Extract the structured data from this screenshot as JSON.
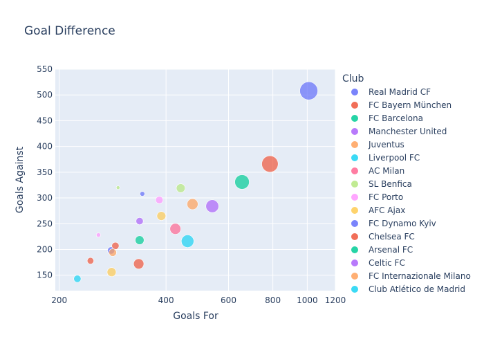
{
  "chart_data": {
    "type": "scatter",
    "title": "Goal Difference",
    "xlabel": "Goals For",
    "ylabel": "Goals Against",
    "x_scale": "log",
    "xlim": [
      195,
      1200
    ],
    "ylim": [
      120,
      550
    ],
    "x_ticks": [
      {
        "value": 200,
        "label": "200"
      },
      {
        "value": 400,
        "label": "400"
      },
      {
        "value": 600,
        "label": "600"
      },
      {
        "value": 800,
        "label": "800"
      },
      {
        "value": 1000,
        "label": "1000"
      },
      {
        "value": 1200,
        "label": "1200"
      }
    ],
    "y_ticks": [
      {
        "value": 150,
        "label": "150"
      },
      {
        "value": 200,
        "label": "200"
      },
      {
        "value": 250,
        "label": "250"
      },
      {
        "value": 300,
        "label": "300"
      },
      {
        "value": 350,
        "label": "350"
      },
      {
        "value": 400,
        "label": "400"
      },
      {
        "value": 450,
        "label": "450"
      },
      {
        "value": 500,
        "label": "500"
      },
      {
        "value": 550,
        "label": "550"
      }
    ],
    "legend_title": "Club",
    "legend_position": "right",
    "series": [
      {
        "name": "Real Madrid CF",
        "color": "#636efa",
        "points": [
          {
            "x": 1010,
            "y": 508,
            "size": 502
          }
        ]
      },
      {
        "name": "FC Bayern München",
        "color": "#EF553B",
        "points": [
          {
            "x": 785,
            "y": 366,
            "size": 419
          }
        ]
      },
      {
        "name": "FC Barcelona",
        "color": "#00cc96",
        "points": [
          {
            "x": 655,
            "y": 331,
            "size": 324
          }
        ]
      },
      {
        "name": "Manchester United",
        "color": "#ab63fa",
        "points": [
          {
            "x": 540,
            "y": 284,
            "size": 256
          }
        ]
      },
      {
        "name": "Juventus",
        "color": "#FFA15A",
        "points": [
          {
            "x": 475,
            "y": 288,
            "size": 187
          }
        ]
      },
      {
        "name": "Liverpool FC",
        "color": "#19d3f3",
        "points": [
          {
            "x": 460,
            "y": 216,
            "size": 244
          }
        ]
      },
      {
        "name": "AC Milan",
        "color": "#FF6692",
        "points": [
          {
            "x": 425,
            "y": 240,
            "size": 185
          }
        ]
      },
      {
        "name": "SL Benfica",
        "color": "#B6E880",
        "points": [
          {
            "x": 440,
            "y": 319,
            "size": 121
          },
          {
            "x": 293,
            "y": 320,
            "size": 20
          }
        ]
      },
      {
        "name": "FC Porto",
        "color": "#FF97FF",
        "points": [
          {
            "x": 383,
            "y": 296,
            "size": 87
          },
          {
            "x": 258,
            "y": 228,
            "size": 30
          }
        ]
      },
      {
        "name": "AFC Ajax",
        "color": "#FECB52",
        "points": [
          {
            "x": 388,
            "y": 265,
            "size": 123
          },
          {
            "x": 281,
            "y": 156,
            "size": 125
          }
        ]
      },
      {
        "name": "FC Dynamo Kyiv",
        "color": "#636efa",
        "points": [
          {
            "x": 343,
            "y": 308,
            "size": 35
          },
          {
            "x": 280,
            "y": 198,
            "size": 82
          }
        ]
      },
      {
        "name": "Chelsea FC",
        "color": "#EF553B",
        "points": [
          {
            "x": 335,
            "y": 172,
            "size": 163
          },
          {
            "x": 245,
            "y": 178,
            "size": 67
          },
          {
            "x": 288,
            "y": 207,
            "size": 81
          }
        ]
      },
      {
        "name": "Arsenal FC",
        "color": "#00cc96",
        "points": [
          {
            "x": 337,
            "y": 218,
            "size": 119
          }
        ]
      },
      {
        "name": "Celtic FC",
        "color": "#ab63fa",
        "points": [
          {
            "x": 337,
            "y": 255,
            "size": 82
          }
        ]
      },
      {
        "name": "FC Internazionale Milano",
        "color": "#FFA15A",
        "points": [
          {
            "x": 283,
            "y": 194,
            "size": 89
          }
        ]
      },
      {
        "name": "Club Atlético de Madrid",
        "color": "#19d3f3",
        "points": [
          {
            "x": 225,
            "y": 143,
            "size": 82
          }
        ]
      }
    ]
  }
}
